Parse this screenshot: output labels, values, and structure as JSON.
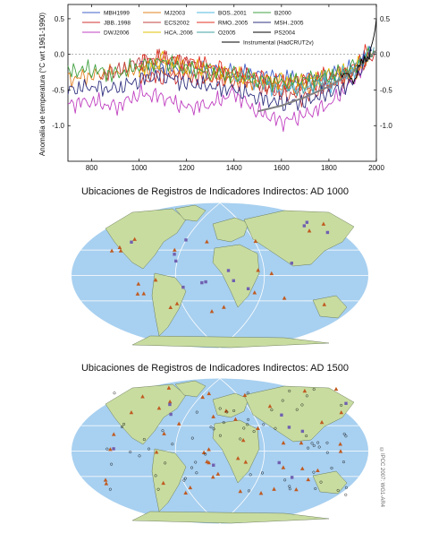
{
  "chart_data": {
    "type": "line",
    "ylabel": "Anomalía de temperatura (°C wrt 1961-1990)",
    "xlim": [
      700,
      2000
    ],
    "ylim": [
      -1.5,
      0.7
    ],
    "xticks": [
      800,
      1000,
      1200,
      1400,
      1600,
      1800,
      2000
    ],
    "yticks": [
      0.5,
      0.0,
      -0.5,
      -1.0
    ],
    "ytick_labels": [
      "0.5",
      "0.0",
      "-0.5",
      "-1.0"
    ],
    "xtick_labels": [
      "800",
      "1000",
      "1200",
      "1400",
      "1600",
      "1800",
      "2000"
    ],
    "legend": [
      "MBH1999",
      "MJ2003",
      "BOS..2001",
      "B2000",
      "JBB..1998",
      "ECS2002",
      "RMO..2005",
      "MSH..2005",
      "DWJ2006",
      "HCA..2006",
      "O2005",
      "PS2004",
      "Instrumental (HadCRUT2v)"
    ],
    "series": [
      {
        "name": "MBH1999",
        "color": "#4060c8",
        "x": [
          1000,
          1100,
          1200,
          1300,
          1400,
          1500,
          1600,
          1700,
          1800,
          1900,
          1980
        ],
        "y": [
          -0.15,
          -0.2,
          -0.18,
          -0.22,
          -0.25,
          -0.28,
          -0.32,
          -0.35,
          -0.3,
          -0.2,
          0.05
        ]
      },
      {
        "name": "JBB..1998",
        "color": "#d03030",
        "x": [
          1000,
          1100,
          1200,
          1300,
          1400,
          1500,
          1600,
          1700,
          1800,
          1900,
          1991
        ],
        "y": [
          -0.35,
          -0.3,
          -0.32,
          -0.35,
          -0.38,
          -0.42,
          -0.5,
          -0.45,
          -0.4,
          -0.25,
          0.0
        ]
      },
      {
        "name": "DWJ2006",
        "color": "#c040c0",
        "x": [
          700,
          800,
          900,
          1000,
          1100,
          1200,
          1300,
          1400,
          1500,
          1600,
          1700,
          1800,
          1900,
          1950
        ],
        "y": [
          -0.7,
          -0.65,
          -0.75,
          -0.55,
          -0.6,
          -0.75,
          -0.7,
          -0.55,
          -0.8,
          -0.95,
          -0.85,
          -0.7,
          -0.4,
          -0.1
        ]
      },
      {
        "name": "MJ2003",
        "color": "#e08020",
        "x": [
          700,
          800,
          900,
          1000,
          1100,
          1200,
          1300,
          1400,
          1500,
          1600,
          1700,
          1800,
          1900,
          1980
        ],
        "y": [
          -0.35,
          -0.3,
          -0.25,
          -0.2,
          -0.2,
          -0.25,
          -0.3,
          -0.35,
          -0.4,
          -0.45,
          -0.45,
          -0.4,
          -0.3,
          0.0
        ]
      },
      {
        "name": "ECS2002",
        "color": "#c04040",
        "x": [
          831,
          900,
          1000,
          1100,
          1200,
          1300,
          1400,
          1500,
          1600,
          1700,
          1800,
          1900,
          1992
        ],
        "y": [
          -0.3,
          -0.25,
          -0.1,
          -0.05,
          -0.1,
          -0.25,
          -0.3,
          -0.45,
          -0.55,
          -0.6,
          -0.45,
          -0.3,
          0.05
        ]
      },
      {
        "name": "HCA..2006",
        "color": "#e0c000",
        "x": [
          1000,
          1100,
          1200,
          1300,
          1400,
          1500,
          1600,
          1700,
          1800,
          1900,
          1980
        ],
        "y": [
          -0.2,
          -0.1,
          -0.15,
          -0.2,
          -0.3,
          -0.35,
          -0.4,
          -0.35,
          -0.3,
          -0.2,
          0.0
        ]
      },
      {
        "name": "BOS..2001",
        "color": "#50b8e0",
        "x": [
          1400,
          1450,
          1500,
          1550,
          1600,
          1650,
          1700,
          1750,
          1800,
          1850,
          1900,
          1960
        ],
        "y": [
          -0.35,
          -0.3,
          -0.4,
          -0.45,
          -0.5,
          -0.45,
          -0.5,
          -0.4,
          -0.45,
          -0.3,
          -0.25,
          -0.05
        ]
      },
      {
        "name": "RMO..2005",
        "color": "#e03020",
        "x": [
          1000,
          1100,
          1200,
          1300,
          1400,
          1500,
          1600,
          1700,
          1800,
          1900,
          1960
        ],
        "y": [
          -0.1,
          -0.05,
          -0.1,
          -0.15,
          -0.25,
          -0.3,
          -0.4,
          -0.35,
          -0.3,
          -0.2,
          0.05
        ]
      },
      {
        "name": "O2005",
        "color": "#40a0a0",
        "x": [
          1600,
          1650,
          1700,
          1750,
          1800,
          1850,
          1900,
          1950,
          1990
        ],
        "y": [
          -0.45,
          -0.5,
          -0.45,
          -0.4,
          -0.35,
          -0.3,
          -0.2,
          -0.05,
          0.1
        ]
      },
      {
        "name": "B2000",
        "color": "#40a040",
        "x": [
          700,
          800,
          900,
          1000,
          1100,
          1200,
          1300,
          1400,
          1500,
          1600,
          1700,
          1800,
          1900,
          1990
        ],
        "y": [
          -0.25,
          -0.2,
          -0.3,
          -0.15,
          -0.1,
          -0.2,
          -0.25,
          -0.3,
          -0.35,
          -0.4,
          -0.35,
          -0.3,
          -0.2,
          0.05
        ]
      },
      {
        "name": "MSH..2005",
        "color": "#303080",
        "x": [
          700,
          800,
          900,
          1000,
          1100,
          1200,
          1300,
          1400,
          1500,
          1600,
          1700,
          1800,
          1900,
          1979
        ],
        "y": [
          -0.5,
          -0.45,
          -0.5,
          -0.35,
          -0.3,
          -0.4,
          -0.45,
          -0.5,
          -0.6,
          -0.7,
          -0.65,
          -0.55,
          -0.4,
          0.05
        ]
      },
      {
        "name": "PS2004",
        "color": "#808080",
        "x": [
          1500,
          1600,
          1700,
          1800,
          1900,
          2000
        ],
        "y": [
          -0.8,
          -0.72,
          -0.6,
          -0.45,
          -0.25,
          0.05
        ]
      },
      {
        "name": "Instrumental (HadCRUT2v)",
        "color": "#000000",
        "x": [
          1850,
          1870,
          1890,
          1910,
          1930,
          1950,
          1970,
          1990,
          2000
        ],
        "y": [
          -0.3,
          -0.25,
          -0.35,
          -0.35,
          -0.15,
          -0.05,
          -0.05,
          0.25,
          0.5
        ]
      }
    ]
  },
  "maps": {
    "ad1000_title": "Ubicaciones de Registros de Indicadores Indirectos: AD 1000",
    "ad1500_title": "Ubicaciones de Registros de Indicadores Indirectos: AD 1500",
    "ocean_color": "#a8d0f0",
    "land_color": "#c8dca0",
    "triangle_color": "#c05a20",
    "square_color": "#7060b0",
    "ring_color": "#000000"
  },
  "copyright": "©IPCC 2007: WG1-AR4"
}
